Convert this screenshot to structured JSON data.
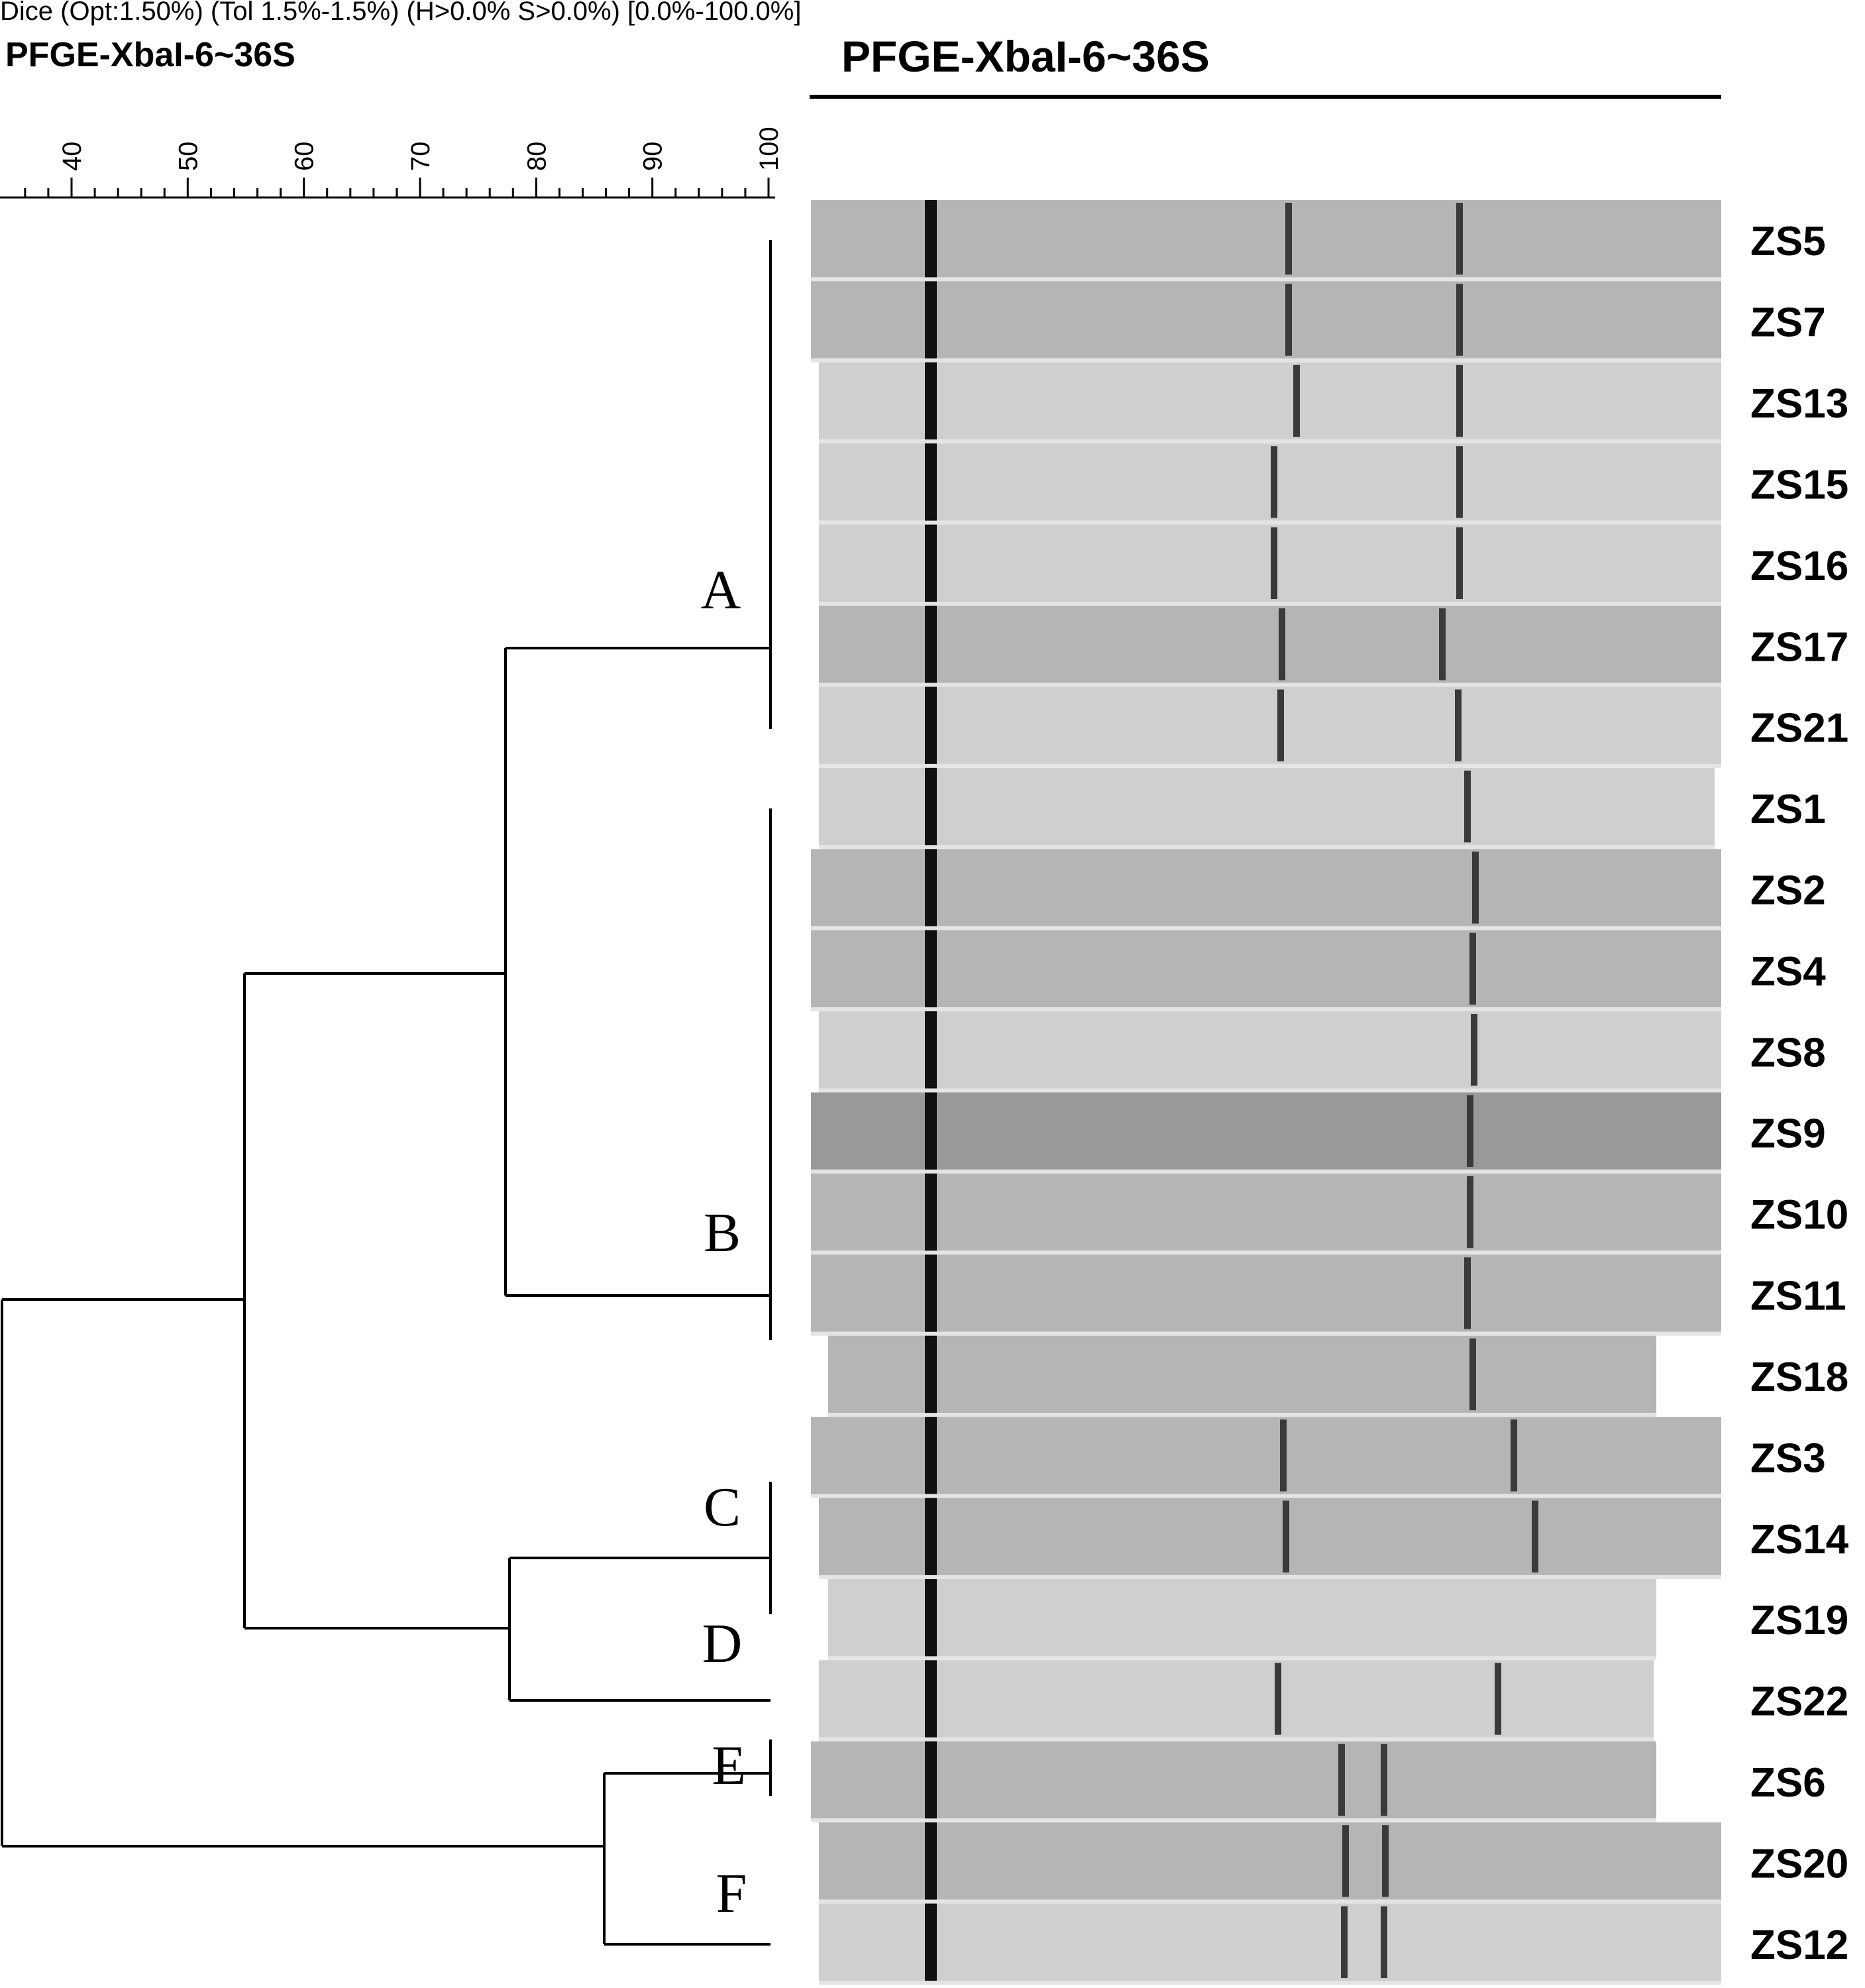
{
  "header": {
    "settings_text": "Dice (Opt:1.50%) (Tol 1.5%-1.5%) (H>0.0% S>0.0%) [0.0%-100.0%]",
    "experiment_title_left": "PFGE-XbaI-6~36S",
    "experiment_title_gel": "PFGE-XbaI-6~36S"
  },
  "scale": {
    "ticks": [
      "40",
      "50",
      "60",
      "70",
      "80",
      "90",
      "100"
    ]
  },
  "clusters": [
    {
      "label": "A"
    },
    {
      "label": "B"
    },
    {
      "label": "C"
    },
    {
      "label": "D"
    },
    {
      "label": "E"
    },
    {
      "label": "F"
    }
  ],
  "lanes": [
    {
      "name": "ZS5",
      "cluster": "A"
    },
    {
      "name": "ZS7",
      "cluster": "A"
    },
    {
      "name": "ZS13",
      "cluster": "A"
    },
    {
      "name": "ZS15",
      "cluster": "A"
    },
    {
      "name": "ZS16",
      "cluster": "A"
    },
    {
      "name": "ZS17",
      "cluster": "A"
    },
    {
      "name": "ZS21",
      "cluster": "A"
    },
    {
      "name": "ZS1",
      "cluster": "B"
    },
    {
      "name": "ZS2",
      "cluster": "B"
    },
    {
      "name": "ZS4",
      "cluster": "B"
    },
    {
      "name": "ZS8",
      "cluster": "B"
    },
    {
      "name": "ZS9",
      "cluster": "B"
    },
    {
      "name": "ZS10",
      "cluster": "B"
    },
    {
      "name": "ZS11",
      "cluster": "B"
    },
    {
      "name": "ZS18",
      "cluster": "B"
    },
    {
      "name": "ZS3",
      "cluster": "C"
    },
    {
      "name": "ZS14",
      "cluster": "C"
    },
    {
      "name": "ZS19",
      "cluster": "D"
    },
    {
      "name": "ZS22",
      "cluster": "D"
    },
    {
      "name": "ZS6",
      "cluster": "E"
    },
    {
      "name": "ZS20",
      "cluster": "F"
    },
    {
      "name": "ZS12",
      "cluster": "F"
    }
  ],
  "colors": {
    "line": "#000000",
    "gel_light": "#cfcfcf",
    "gel_mid": "#b5b5b5",
    "gel_dark": "#999999",
    "band": "#3a3a3a",
    "marker_band": "#111111"
  }
}
